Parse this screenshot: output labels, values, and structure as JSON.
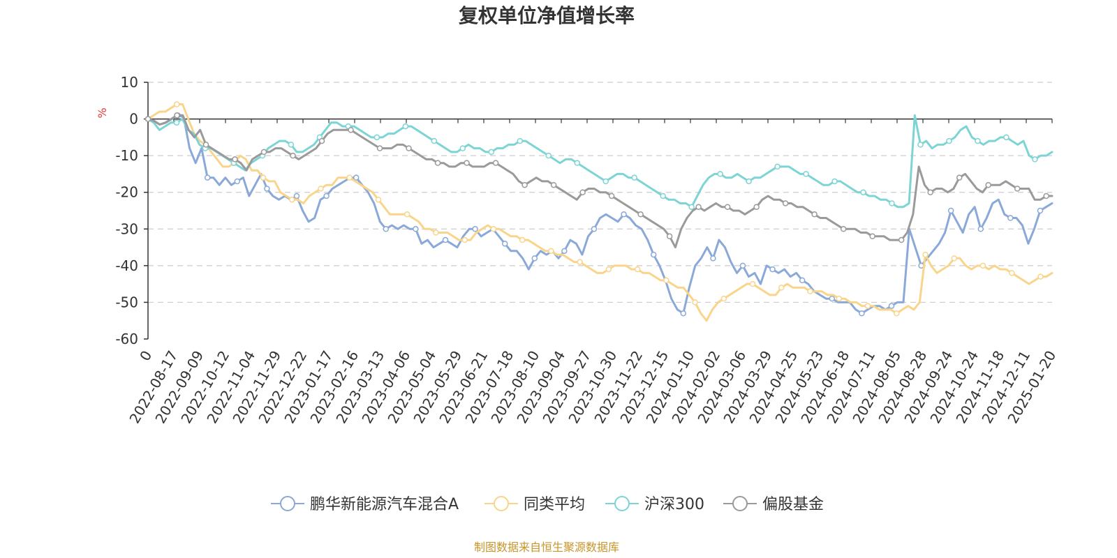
{
  "chart_data": {
    "type": "line",
    "title": "复权单位净值增长率",
    "ylabel": "%",
    "ylim": [
      -60,
      10
    ],
    "yticks": [
      10,
      0,
      -10,
      -20,
      -30,
      -40,
      -50,
      -60
    ],
    "x_start_label": "0",
    "x_tick_labels": [
      "2022-08-17",
      "2022-09-09",
      "2022-10-12",
      "2022-11-04",
      "2022-11-29",
      "2022-12-22",
      "2023-01-17",
      "2023-02-16",
      "2023-03-13",
      "2023-04-06",
      "2023-05-04",
      "2023-05-29",
      "2023-06-21",
      "2023-07-18",
      "2023-08-10",
      "2023-09-04",
      "2023-09-27",
      "2023-10-30",
      "2023-11-22",
      "2023-12-15",
      "2024-01-10",
      "2024-02-02",
      "2024-03-06",
      "2024-03-29",
      "2024-04-25",
      "2024-05-23",
      "2024-06-18",
      "2024-07-11",
      "2024-08-05",
      "2024-08-28",
      "2024-09-24",
      "2024-10-24",
      "2024-11-18",
      "2024-12-11",
      "2025-01-20"
    ],
    "grid": true,
    "legend_position": "bottom",
    "series": [
      {
        "name": "鹏华新能源汽车混合A",
        "color": "#8aa8d8",
        "values": [
          0,
          -0.5,
          -1.5,
          -1,
          0,
          1,
          0.5,
          -8,
          -12,
          -8,
          -16,
          -16,
          -18,
          -16,
          -18,
          -17,
          -16,
          -21,
          -18,
          -15,
          -19,
          -21,
          -22,
          -21,
          -22,
          -21,
          -25,
          -28,
          -27,
          -22,
          -21,
          -19,
          -18,
          -17,
          -16,
          -16,
          -18,
          -20,
          -23,
          -28,
          -30,
          -29,
          -30,
          -29,
          -30,
          -30,
          -34,
          -33,
          -35,
          -34,
          -33,
          -34,
          -35,
          -32,
          -30,
          -30,
          -32,
          -31,
          -30,
          -32,
          -34,
          -36,
          -36,
          -38,
          -41,
          -38,
          -36,
          -37,
          -36,
          -38,
          -36,
          -33,
          -34,
          -37,
          -32,
          -30,
          -27,
          -26,
          -27,
          -28,
          -26,
          -27,
          -29,
          -30,
          -33,
          -37,
          -40,
          -44,
          -49,
          -52,
          -53,
          -46,
          -40,
          -38,
          -35,
          -38,
          -33,
          -35,
          -39,
          -42,
          -40,
          -43,
          -42,
          -45,
          -40,
          -41,
          -42,
          -41,
          -43,
          -42,
          -44,
          -45,
          -47,
          -48,
          -49,
          -49,
          -50,
          -50,
          -50,
          -52,
          -53,
          -52,
          -51,
          -51,
          -52,
          -51,
          -50,
          -50,
          -30,
          -35,
          -40,
          -38,
          -36,
          -34,
          -31,
          -25,
          -28,
          -31,
          -26,
          -24,
          -30,
          -27,
          -23,
          -22,
          -26,
          -27,
          -27,
          -29,
          -34,
          -30,
          -25,
          -24,
          -23
        ]
      },
      {
        "name": "同类平均",
        "color": "#f9d48b",
        "values": [
          0,
          1,
          2,
          2,
          3,
          4,
          4,
          0,
          -4,
          -6,
          -7,
          -9,
          -11,
          -13,
          -13,
          -12,
          -10,
          -11,
          -14,
          -14,
          -16,
          -17,
          -17,
          -20,
          -21,
          -22,
          -22,
          -23,
          -21,
          -20,
          -19,
          -18,
          -18,
          -16,
          -16,
          -16,
          -17,
          -18,
          -19,
          -20,
          -22,
          -24,
          -26,
          -26,
          -26,
          -26,
          -27,
          -28,
          -30,
          -30,
          -31,
          -31,
          -31,
          -32,
          -33,
          -33,
          -33,
          -31,
          -30,
          -29,
          -30,
          -30,
          -31,
          -32,
          -32,
          -33,
          -33,
          -34,
          -35,
          -36,
          -36,
          -37,
          -37,
          -38,
          -39,
          -39,
          -40,
          -41,
          -42,
          -42,
          -41,
          -40,
          -40,
          -40,
          -41,
          -41,
          -42,
          -42,
          -43,
          -44,
          -44,
          -45,
          -46,
          -46,
          -48,
          -50,
          -53,
          -55,
          -52,
          -50,
          -49,
          -48,
          -47,
          -46,
          -45,
          -45,
          -46,
          -47,
          -48,
          -48,
          -46,
          -45,
          -46,
          -46,
          -46,
          -47,
          -47,
          -47,
          -48,
          -48,
          -49,
          -49,
          -50,
          -50,
          -51,
          -51,
          -51,
          -52,
          -52,
          -52,
          -53,
          -52,
          -51,
          -52,
          -50,
          -37,
          -40,
          -42,
          -41,
          -40,
          -38,
          -38,
          -40,
          -41,
          -40,
          -40,
          -41,
          -40,
          -41,
          -41,
          -42,
          -43,
          -44,
          -45,
          -44,
          -43,
          -43,
          -42
        ]
      },
      {
        "name": "沪深300",
        "color": "#7cd4d4",
        "values": [
          0,
          -1,
          -3,
          -2,
          -1,
          -1,
          0,
          -3,
          -4,
          -7,
          -8,
          -8,
          -9,
          -10,
          -11,
          -12,
          -13,
          -14,
          -12,
          -11,
          -10,
          -8,
          -7,
          -6,
          -6,
          -7,
          -9,
          -9,
          -8,
          -7,
          -5,
          -3,
          -1,
          -1,
          -2,
          -2,
          -2,
          -3,
          -4,
          -5,
          -5,
          -5,
          -4,
          -4,
          -3,
          -2,
          -2,
          -3,
          -4,
          -5,
          -6,
          -7,
          -8,
          -9,
          -9,
          -8,
          -7,
          -8,
          -8,
          -9,
          -9,
          -8,
          -8,
          -7,
          -7,
          -6,
          -6,
          -7,
          -8,
          -9,
          -10,
          -11,
          -12,
          -11,
          -11,
          -12,
          -13,
          -14,
          -15,
          -16,
          -17,
          -16,
          -15,
          -15,
          -16,
          -16,
          -17,
          -18,
          -19,
          -20,
          -21,
          -22,
          -22,
          -23,
          -23,
          -24,
          -21,
          -18,
          -16,
          -15,
          -15,
          -16,
          -16,
          -15,
          -16,
          -17,
          -16,
          -16,
          -15,
          -14,
          -13,
          -13,
          -13,
          -14,
          -15,
          -15,
          -16,
          -17,
          -18,
          -18,
          -17,
          -17,
          -18,
          -19,
          -20,
          -20,
          -21,
          -21,
          -22,
          -22,
          -23,
          -24,
          -24,
          -23,
          1,
          -7,
          -6,
          -8,
          -7,
          -7,
          -6,
          -5,
          -3,
          -2,
          -5,
          -6,
          -7,
          -6,
          -6,
          -5,
          -5,
          -6,
          -7,
          -6,
          -10,
          -11,
          -10,
          -10,
          -9
        ]
      },
      {
        "name": "偏股基金",
        "color": "#9a9a9a",
        "values": [
          0,
          -0.5,
          -1.5,
          -1,
          0,
          1,
          1,
          -3,
          -5,
          -3,
          -7,
          -8,
          -9,
          -10,
          -11,
          -11,
          -12,
          -14,
          -11,
          -10,
          -9,
          -9,
          -8,
          -8,
          -9,
          -10,
          -11,
          -10,
          -9,
          -8,
          -6,
          -4,
          -3,
          -3,
          -3,
          -3,
          -4,
          -5,
          -6,
          -7,
          -8,
          -8,
          -8,
          -7,
          -7,
          -8,
          -9,
          -10,
          -11,
          -11,
          -12,
          -12,
          -13,
          -13,
          -12,
          -12,
          -13,
          -13,
          -13,
          -12,
          -12,
          -13,
          -14,
          -15,
          -17,
          -18,
          -17,
          -16,
          -17,
          -17,
          -18,
          -19,
          -20,
          -21,
          -22,
          -20,
          -19,
          -19,
          -20,
          -20,
          -21,
          -22,
          -23,
          -24,
          -25,
          -26,
          -27,
          -28,
          -29,
          -30,
          -32,
          -35,
          -30,
          -27,
          -25,
          -24,
          -25,
          -24,
          -23,
          -24,
          -24,
          -25,
          -25,
          -26,
          -25,
          -24,
          -22,
          -21,
          -22,
          -22,
          -23,
          -23,
          -24,
          -24,
          -25,
          -26,
          -27,
          -27,
          -28,
          -29,
          -30,
          -30,
          -30,
          -31,
          -31,
          -32,
          -32,
          -32,
          -33,
          -33,
          -33,
          -31,
          -26,
          -13,
          -18,
          -20,
          -19,
          -19,
          -20,
          -19,
          -16,
          -15,
          -17,
          -19,
          -20,
          -18,
          -18,
          -18,
          -17,
          -18,
          -19,
          -19,
          -19,
          -22,
          -22,
          -21,
          -21
        ]
      }
    ]
  },
  "source_note": "制图数据来自恒生聚源数据库"
}
